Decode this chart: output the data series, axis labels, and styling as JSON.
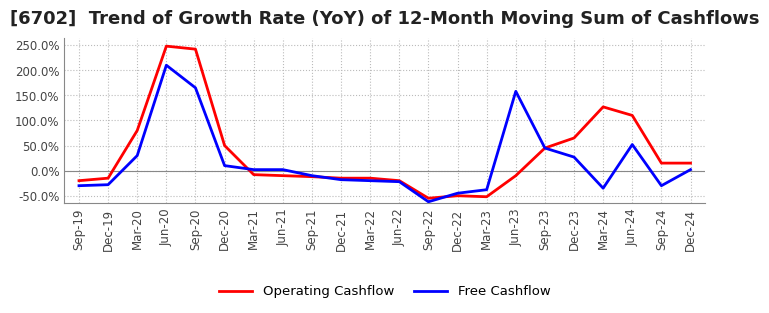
{
  "title": "[6702]  Trend of Growth Rate (YoY) of 12-Month Moving Sum of Cashflows",
  "title_fontsize": 13,
  "x_labels": [
    "Sep-19",
    "Dec-19",
    "Mar-20",
    "Jun-20",
    "Sep-20",
    "Dec-20",
    "Mar-21",
    "Jun-21",
    "Sep-21",
    "Dec-21",
    "Mar-22",
    "Jun-22",
    "Sep-22",
    "Dec-22",
    "Mar-23",
    "Jun-23",
    "Sep-23",
    "Dec-23",
    "Mar-24",
    "Jun-24",
    "Sep-24",
    "Dec-24"
  ],
  "operating_cashflow": [
    -0.2,
    -0.15,
    0.8,
    2.48,
    2.42,
    0.5,
    -0.08,
    -0.1,
    -0.12,
    -0.15,
    -0.15,
    -0.2,
    -0.55,
    -0.5,
    -0.52,
    -0.1,
    0.45,
    0.65,
    1.27,
    1.1,
    0.15,
    0.15
  ],
  "free_cashflow": [
    -0.3,
    -0.28,
    0.3,
    2.1,
    1.65,
    0.1,
    0.02,
    0.02,
    -0.1,
    -0.18,
    -0.2,
    -0.22,
    -0.62,
    -0.45,
    -0.38,
    1.58,
    0.45,
    0.27,
    -0.35,
    0.52,
    -0.3,
    0.02
  ],
  "operating_color": "#ff0000",
  "free_color": "#0000ff",
  "grid_color": "#bbbbbb",
  "bg_color": "#ffffff",
  "ylim": [
    -0.65,
    2.65
  ],
  "yticks": [
    -0.5,
    0.0,
    0.5,
    1.0,
    1.5,
    2.0,
    2.5
  ]
}
